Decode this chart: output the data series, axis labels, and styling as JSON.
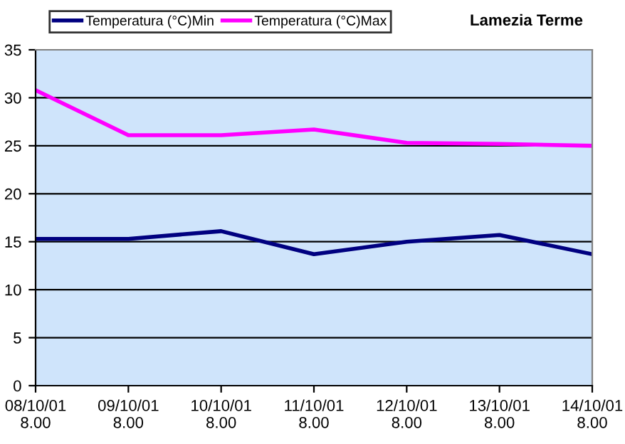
{
  "chart_data": {
    "type": "line",
    "title": "Lamezia Terme",
    "categories": [
      "08/10/01\n8.00",
      "09/10/01\n8.00",
      "10/10/01\n8.00",
      "11/10/01\n8.00",
      "12/10/01\n8.00",
      "13/10/01\n8.00",
      "14/10/01\n8.00"
    ],
    "series": [
      {
        "name": "Temperatura (°C)Min",
        "color": "#000080",
        "values": [
          15.3,
          15.3,
          16.1,
          13.7,
          15.0,
          15.7,
          13.7
        ]
      },
      {
        "name": "Temperatura (°C)Max",
        "color": "#ff00ff",
        "values": [
          30.8,
          26.1,
          26.1,
          26.7,
          25.3,
          25.2,
          25.0
        ]
      }
    ],
    "ylim": [
      0,
      35
    ],
    "yticks": [
      0,
      5,
      10,
      15,
      20,
      25,
      30,
      35
    ],
    "grid": "y",
    "legend": "top left",
    "marker": "none",
    "line_style": "solid"
  }
}
